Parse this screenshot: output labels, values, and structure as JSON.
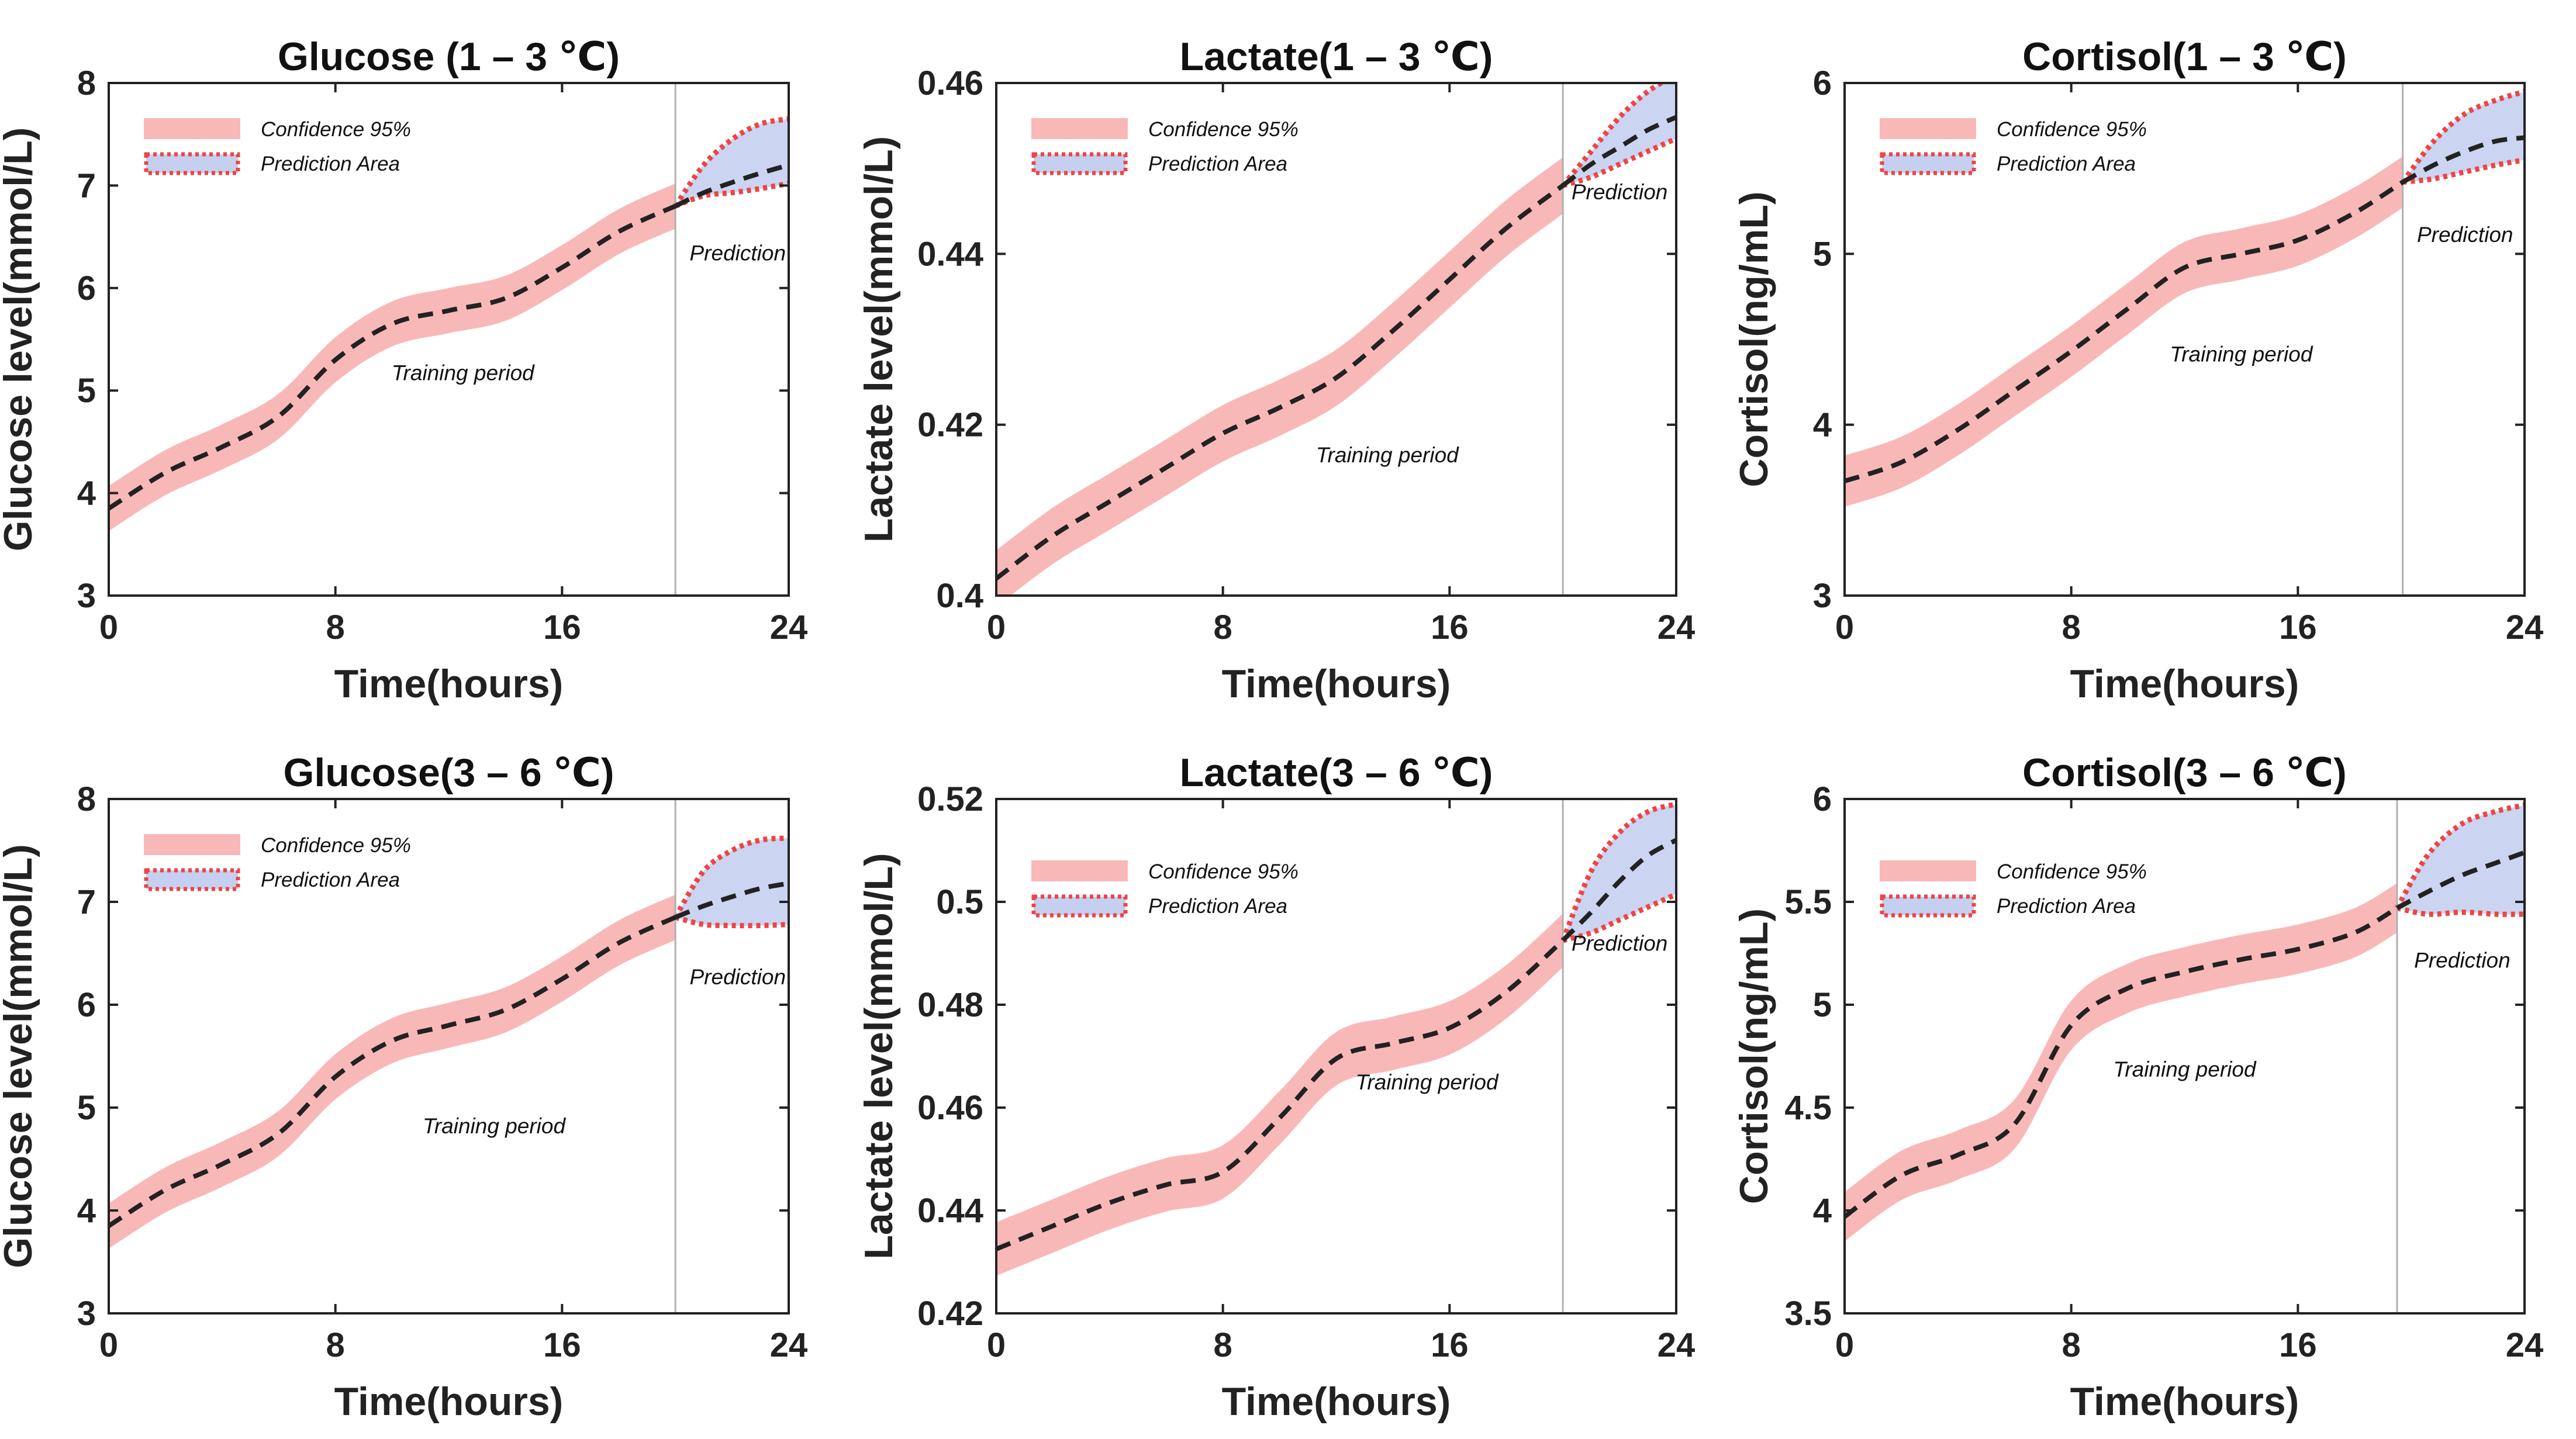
{
  "figure": {
    "colors": {
      "confidence_band": "#f9b8b8",
      "prediction_fill": "#c5cff0",
      "prediction_outline": "#ee4444",
      "mean_line": "#222222",
      "divider": "#b0b0b0",
      "axes": "#222222"
    },
    "legend": {
      "confidence_label": "Confidence 95%",
      "prediction_label": "Prediction Area"
    }
  },
  "chart_data": [
    {
      "type": "line",
      "title": "Glucose (1 – 3 ℃)",
      "xlabel": "Time(hours)",
      "ylabel": "Glucose level(mmol/L)",
      "xlim": [
        0,
        24
      ],
      "ylim": [
        3,
        8
      ],
      "xticks": [
        0,
        8,
        16,
        24
      ],
      "yticks": [
        3,
        4,
        5,
        6,
        7,
        8
      ],
      "ytick_labels": [
        "3",
        "4",
        "5",
        "6",
        "7",
        "8"
      ],
      "prediction_start": 20,
      "band_halfwidth": 0.22,
      "mean": {
        "x": [
          0,
          2,
          4,
          6,
          8,
          10,
          12,
          14,
          16,
          18,
          20
        ],
        "y": [
          3.85,
          4.2,
          4.45,
          4.75,
          5.3,
          5.65,
          5.78,
          5.9,
          6.2,
          6.55,
          6.8
        ]
      },
      "prediction": {
        "x": [
          20,
          21,
          22,
          23,
          24
        ],
        "mean": [
          6.8,
          6.93,
          7.03,
          7.12,
          7.2
        ],
        "upper": [
          6.8,
          7.2,
          7.45,
          7.6,
          7.65
        ],
        "lower": [
          6.8,
          6.9,
          6.93,
          6.97,
          7.02
        ]
      },
      "annotations": {
        "training": "Training period",
        "prediction": "Prediction"
      },
      "annotation_positions": {
        "training": [
          12.5,
          5.1
        ],
        "prediction": [
          22.2,
          6.27
        ]
      }
    },
    {
      "type": "line",
      "title": "Lactate(1 – 3 ℃)",
      "xlabel": "Time(hours)",
      "ylabel": "Lactate level(mmol/L)",
      "xlim": [
        0,
        24
      ],
      "ylim": [
        0.4,
        0.46
      ],
      "xticks": [
        0,
        8,
        16,
        24
      ],
      "yticks": [
        0.4,
        0.42,
        0.44,
        0.46
      ],
      "ytick_labels": [
        "0.4",
        "0.42",
        "0.44",
        "0.46"
      ],
      "prediction_start": 20,
      "band_halfwidth": 0.0033,
      "mean": {
        "x": [
          0,
          2,
          4,
          6,
          8,
          10,
          12,
          14,
          16,
          18,
          20
        ],
        "y": [
          0.402,
          0.407,
          0.411,
          0.415,
          0.419,
          0.422,
          0.4255,
          0.431,
          0.437,
          0.443,
          0.448
        ]
      },
      "prediction": {
        "x": [
          20,
          21,
          22,
          23,
          24
        ],
        "mean": [
          0.448,
          0.4505,
          0.4525,
          0.4545,
          0.456
        ],
        "upper": [
          0.448,
          0.452,
          0.456,
          0.459,
          0.461
        ],
        "lower": [
          0.448,
          0.449,
          0.4505,
          0.452,
          0.4535
        ]
      },
      "annotations": {
        "training": "Training period",
        "prediction": "Prediction"
      },
      "annotation_positions": {
        "training": [
          13.8,
          0.4156
        ],
        "prediction": [
          22.0,
          0.4464
        ]
      }
    },
    {
      "type": "line",
      "title": "Cortisol(1 – 3 ℃)",
      "xlabel": "Time(hours)",
      "ylabel": "Cortisol(ng/mL)",
      "xlim": [
        0,
        24
      ],
      "ylim": [
        3,
        6
      ],
      "xticks": [
        0,
        8,
        16,
        24
      ],
      "yticks": [
        3,
        4,
        5,
        6
      ],
      "ytick_labels": [
        "3",
        "4",
        "5",
        "6"
      ],
      "prediction_start": 19.7,
      "band_halfwidth": 0.15,
      "mean": {
        "x": [
          0,
          2,
          4,
          6,
          8,
          10,
          12,
          14,
          16,
          18,
          19.7
        ],
        "y": [
          3.67,
          3.78,
          3.97,
          4.2,
          4.43,
          4.68,
          4.92,
          5.0,
          5.08,
          5.24,
          5.42
        ]
      },
      "prediction": {
        "x": [
          19.7,
          20.8,
          21.9,
          23,
          24
        ],
        "mean": [
          5.42,
          5.52,
          5.6,
          5.66,
          5.68
        ],
        "upper": [
          5.42,
          5.66,
          5.82,
          5.9,
          5.95
        ],
        "lower": [
          5.42,
          5.44,
          5.48,
          5.52,
          5.55
        ]
      },
      "annotations": {
        "training": "Training period",
        "prediction": "Prediction"
      },
      "annotation_positions": {
        "training": [
          14.0,
          4.37
        ],
        "prediction": [
          21.9,
          5.07
        ]
      }
    },
    {
      "type": "line",
      "title": "Glucose(3 – 6 ℃)",
      "xlabel": "Time(hours)",
      "ylabel": "Glucose level(mmol/L)",
      "xlim": [
        0,
        24
      ],
      "ylim": [
        3,
        8
      ],
      "xticks": [
        0,
        8,
        16,
        24
      ],
      "yticks": [
        3,
        4,
        5,
        6,
        7,
        8
      ],
      "ytick_labels": [
        "3",
        "4",
        "5",
        "6",
        "7",
        "8"
      ],
      "prediction_start": 20,
      "band_halfwidth": 0.22,
      "mean": {
        "x": [
          0,
          2,
          4,
          6,
          8,
          10,
          12,
          14,
          16,
          18,
          20
        ],
        "y": [
          3.85,
          4.2,
          4.45,
          4.75,
          5.3,
          5.65,
          5.8,
          5.95,
          6.25,
          6.6,
          6.85
        ]
      },
      "prediction": {
        "x": [
          20,
          21,
          22,
          23,
          24
        ],
        "mean": [
          6.85,
          6.96,
          7.05,
          7.13,
          7.18
        ],
        "upper": [
          6.85,
          7.3,
          7.5,
          7.6,
          7.62
        ],
        "lower": [
          6.85,
          6.78,
          6.77,
          6.77,
          6.78
        ]
      },
      "annotations": {
        "training": "Training period",
        "prediction": "Prediction"
      },
      "annotation_positions": {
        "training": [
          13.6,
          4.75
        ],
        "prediction": [
          22.2,
          6.2
        ]
      }
    },
    {
      "type": "line",
      "title": "Lactate(3 – 6 ℃)",
      "xlabel": "Time(hours)",
      "ylabel": "Lactate level(mmol/L)",
      "xlim": [
        0,
        24
      ],
      "ylim": [
        0.42,
        0.52
      ],
      "xticks": [
        0,
        8,
        16,
        24
      ],
      "yticks": [
        0.42,
        0.44,
        0.46,
        0.48,
        0.5,
        0.52
      ],
      "ytick_labels": [
        "0.42",
        "0.44",
        "0.46",
        "0.48",
        "0.5",
        "0.52"
      ],
      "prediction_start": 20,
      "band_halfwidth": 0.0052,
      "mean": {
        "x": [
          0,
          2,
          4,
          6,
          8,
          10,
          12,
          14,
          16,
          18,
          20
        ],
        "y": [
          0.4325,
          0.437,
          0.4415,
          0.445,
          0.4475,
          0.458,
          0.4695,
          0.4725,
          0.4755,
          0.4825,
          0.4925
        ]
      },
      "prediction": {
        "x": [
          20,
          21,
          22,
          23,
          24
        ],
        "mean": [
          0.4925,
          0.498,
          0.504,
          0.509,
          0.512
        ],
        "upper": [
          0.4925,
          0.506,
          0.5135,
          0.5175,
          0.519
        ],
        "lower": [
          0.4925,
          0.494,
          0.4965,
          0.499,
          0.5015
        ]
      },
      "annotations": {
        "training": "Training period",
        "prediction": "Prediction"
      },
      "annotation_positions": {
        "training": [
          15.2,
          0.4635
        ],
        "prediction": [
          22.0,
          0.4905
        ]
      }
    },
    {
      "type": "line",
      "title": "Cortisol(3 – 6 ℃)",
      "xlabel": "Time(hours)",
      "ylabel": "Cortisol(ng/mL)",
      "xlim": [
        0,
        24
      ],
      "ylim": [
        3.5,
        6
      ],
      "xticks": [
        0,
        8,
        16,
        24
      ],
      "yticks": [
        3.5,
        4,
        4.5,
        5,
        5.5,
        6
      ],
      "ytick_labels": [
        "3.5",
        "4",
        "4.5",
        "5",
        "5.5",
        "6"
      ],
      "prediction_start": 19.5,
      "band_halfwidth": 0.12,
      "mean": {
        "x": [
          0,
          2,
          4,
          6,
          8,
          10,
          12,
          14,
          16,
          18,
          19.5
        ],
        "y": [
          3.97,
          4.17,
          4.27,
          4.42,
          4.9,
          5.08,
          5.16,
          5.22,
          5.27,
          5.35,
          5.47
        ]
      },
      "prediction": {
        "x": [
          19.5,
          20.6,
          21.8,
          23,
          24
        ],
        "mean": [
          5.47,
          5.55,
          5.63,
          5.69,
          5.74
        ],
        "upper": [
          5.47,
          5.73,
          5.88,
          5.94,
          5.97
        ],
        "lower": [
          5.47,
          5.44,
          5.45,
          5.44,
          5.44
        ]
      },
      "annotations": {
        "training": "Training period",
        "prediction": "Prediction"
      },
      "annotation_positions": {
        "training": [
          12.0,
          4.65
        ],
        "prediction": [
          21.8,
          5.18
        ]
      }
    }
  ]
}
